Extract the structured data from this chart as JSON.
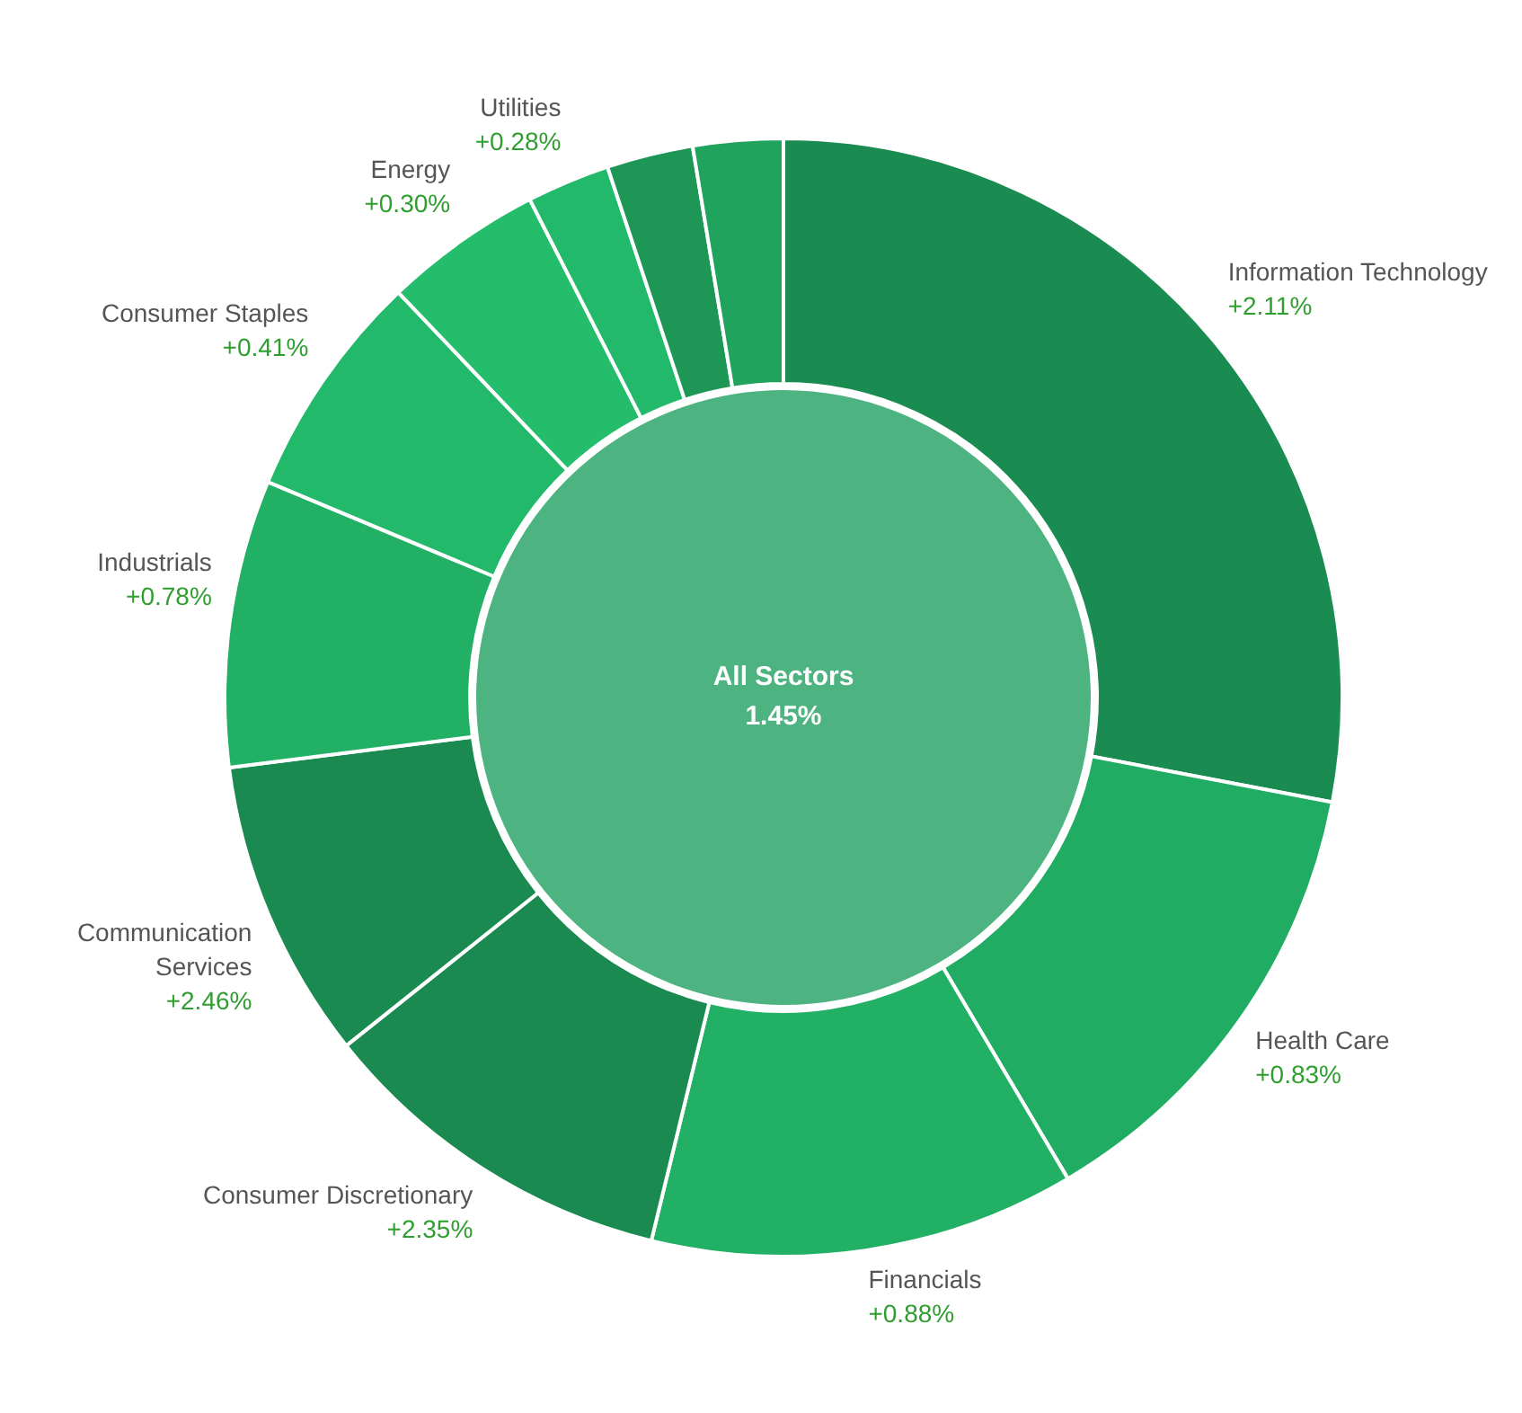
{
  "chart_data": {
    "type": "donut",
    "categories": [
      "Information Technology",
      "Health Care",
      "Financials",
      "Consumer Discretionary",
      "Communication Services",
      "Industrials",
      "Consumer Staples",
      "Energy",
      "Utilities",
      null,
      null
    ],
    "values": [
      28.0,
      13.5,
      12.3,
      10.5,
      8.7,
      8.3,
      6.6,
      4.6,
      2.4,
      2.5,
      2.6
    ],
    "colors": [
      "#1b8c51",
      "#20ad63",
      "#21b064",
      "#1a8a50",
      "#1a8a50",
      "#21b064",
      "#22b96a",
      "#24bd6c",
      "#22b96a",
      "#1d9656",
      "#1fa35d"
    ],
    "annotations": [
      "All Sectors",
      "1.45%",
      {
        "text": "+2.11%",
        "x": "Information Technology"
      },
      {
        "text": "+0.83%",
        "x": "Health Care"
      },
      {
        "text": "+0.88%",
        "x": "Financials"
      },
      {
        "text": "+2.35%",
        "x": "Consumer Discretionary"
      },
      {
        "text": "+2.46%",
        "x": "Communication Services"
      },
      {
        "text": "+0.78%",
        "x": "Industrials"
      },
      {
        "text": "+0.41%",
        "x": "Consumer Staples"
      },
      {
        "text": "+0.30%",
        "x": "Energy"
      },
      {
        "text": "+0.28%",
        "x": "Utilities"
      }
    ],
    "legend": false
  }
}
